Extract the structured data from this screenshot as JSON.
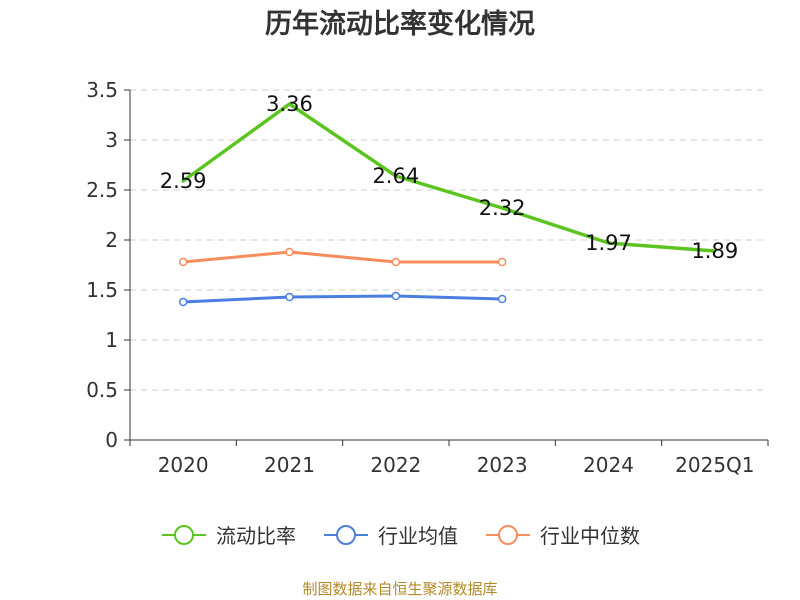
{
  "chart_data": {
    "type": "line",
    "title": "历年流动比率变化情况",
    "categories": [
      "2020",
      "2021",
      "2022",
      "2023",
      "2024",
      "2025Q1"
    ],
    "ylim": [
      0,
      3.5
    ],
    "yticks": [
      "0",
      "0.5",
      "1",
      "1.5",
      "2",
      "2.5",
      "3",
      "3.5"
    ],
    "grid": true,
    "legend_position": "bottom",
    "series": [
      {
        "name": "流动比率",
        "color": "#5cc41f",
        "values": [
          2.59,
          3.36,
          2.64,
          2.32,
          1.97,
          1.89
        ],
        "labels": [
          "2.59",
          "3.36",
          "2.64",
          "2.32",
          "1.97",
          "1.89"
        ]
      },
      {
        "name": "行业均值",
        "color": "#4a7ee0",
        "values": [
          1.38,
          1.43,
          1.44,
          1.41,
          null,
          null
        ]
      },
      {
        "name": "行业中位数",
        "color": "#f78c5c",
        "values": [
          1.78,
          1.88,
          1.78,
          1.78,
          null,
          null
        ]
      }
    ]
  },
  "footer": {
    "source": "制图数据来自恒生聚源数据库"
  }
}
